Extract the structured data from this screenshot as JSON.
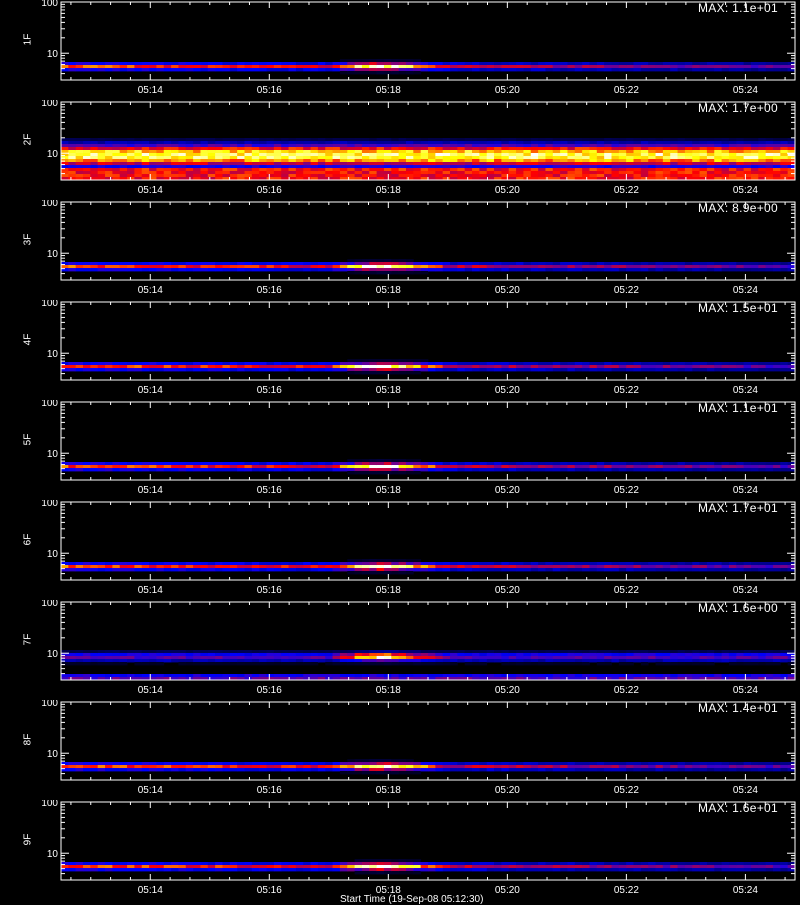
{
  "chart_data": [
    {
      "type": "heatmap",
      "channel_label": "1F",
      "max_label": "MAX: 1.1e+01",
      "ylim": [
        3,
        100
      ],
      "y_scale": "log",
      "y_ticks": [
        "100",
        "10"
      ],
      "x_ticks": [
        "05:14",
        "05:16",
        "05:18",
        "05:20",
        "05:22",
        "05:24"
      ],
      "band": {
        "center": 5.5,
        "type": "narrow"
      },
      "burst": {
        "start": "05:17:00",
        "peak": "05:17:50",
        "end": "05:19:00",
        "max": 11
      }
    },
    {
      "type": "heatmap",
      "channel_label": "2F",
      "max_label": "MAX: 1.7e+00",
      "ylim": [
        3,
        100
      ],
      "y_scale": "log",
      "y_ticks": [
        "100",
        "10"
      ],
      "x_ticks": [
        "05:14",
        "05:16",
        "05:18",
        "05:20",
        "05:22",
        "05:24"
      ],
      "band": {
        "center": 9,
        "type": "wide"
      },
      "burst": null
    },
    {
      "type": "heatmap",
      "channel_label": "3F",
      "max_label": "MAX: 8.9e+00",
      "ylim": [
        3,
        100
      ],
      "y_scale": "log",
      "y_ticks": [
        "100",
        "10"
      ],
      "x_ticks": [
        "05:14",
        "05:16",
        "05:18",
        "05:20",
        "05:22",
        "05:24"
      ],
      "band": {
        "center": 5.5,
        "type": "narrow"
      },
      "burst": {
        "start": "05:17:00",
        "peak": "05:17:50",
        "end": "05:19:00",
        "max": 8.9
      }
    },
    {
      "type": "heatmap",
      "channel_label": "4F",
      "max_label": "MAX: 1.5e+01",
      "ylim": [
        3,
        100
      ],
      "y_scale": "log",
      "y_ticks": [
        "100",
        "10"
      ],
      "x_ticks": [
        "05:14",
        "05:16",
        "05:18",
        "05:20",
        "05:22",
        "05:24"
      ],
      "band": {
        "center": 5.5,
        "type": "narrow"
      },
      "burst": {
        "start": "05:17:00",
        "peak": "05:17:50",
        "end": "05:19:00",
        "max": 15
      }
    },
    {
      "type": "heatmap",
      "channel_label": "5F",
      "max_label": "MAX: 1.1e+01",
      "ylim": [
        3,
        100
      ],
      "y_scale": "log",
      "y_ticks": [
        "100",
        "10"
      ],
      "x_ticks": [
        "05:14",
        "05:16",
        "05:18",
        "05:20",
        "05:22",
        "05:24"
      ],
      "band": {
        "center": 5.5,
        "type": "narrow"
      },
      "burst": {
        "start": "05:17:00",
        "peak": "05:17:50",
        "end": "05:19:00",
        "max": 11
      }
    },
    {
      "type": "heatmap",
      "channel_label": "6F",
      "max_label": "MAX: 1.7e+01",
      "ylim": [
        3,
        100
      ],
      "y_scale": "log",
      "y_ticks": [
        "100",
        "10"
      ],
      "x_ticks": [
        "05:14",
        "05:16",
        "05:18",
        "05:20",
        "05:22",
        "05:24"
      ],
      "band": {
        "center": 5.5,
        "type": "narrow"
      },
      "burst": {
        "start": "05:17:00",
        "peak": "05:17:50",
        "end": "05:19:00",
        "max": 17
      }
    },
    {
      "type": "heatmap",
      "channel_label": "7F",
      "max_label": "MAX: 1.6e+00",
      "ylim": [
        3,
        100
      ],
      "y_scale": "log",
      "y_ticks": [
        "100",
        "10"
      ],
      "x_ticks": [
        "05:14",
        "05:16",
        "05:18",
        "05:20",
        "05:22",
        "05:24"
      ],
      "band": {
        "center": 6,
        "type": "double"
      },
      "burst": {
        "start": "05:17:00",
        "peak": "05:17:50",
        "end": "05:19:00",
        "max": 1.6
      }
    },
    {
      "type": "heatmap",
      "channel_label": "8F",
      "max_label": "MAX: 1.4e+01",
      "ylim": [
        3,
        100
      ],
      "y_scale": "log",
      "y_ticks": [
        "100",
        "10"
      ],
      "x_ticks": [
        "05:14",
        "05:16",
        "05:18",
        "05:20",
        "05:22",
        "05:24"
      ],
      "band": {
        "center": 5.5,
        "type": "narrow"
      },
      "burst": {
        "start": "05:17:00",
        "peak": "05:17:50",
        "end": "05:19:00",
        "max": 14
      }
    },
    {
      "type": "heatmap",
      "channel_label": "9F",
      "max_label": "MAX: 1.6e+01",
      "ylim": [
        3,
        100
      ],
      "y_scale": "log",
      "y_ticks": [
        "100",
        "10"
      ],
      "x_ticks": [
        "05:14",
        "05:16",
        "05:18",
        "05:20",
        "05:22",
        "05:24"
      ],
      "band": {
        "center": 5.5,
        "type": "narrow"
      },
      "burst": {
        "start": "05:17:00",
        "peak": "05:17:50",
        "end": "05:19:00",
        "max": 16
      }
    }
  ],
  "x_range": [
    "05:12:30",
    "05:24:50"
  ],
  "footer_label": "Start Time (19-Sep-08 05:12:30)",
  "colors": {
    "background": "#000000",
    "axes": "#ffffff",
    "colormap": [
      "#000000",
      "#0000ff",
      "#ff0000",
      "#ffff00",
      "#ffffff"
    ]
  }
}
